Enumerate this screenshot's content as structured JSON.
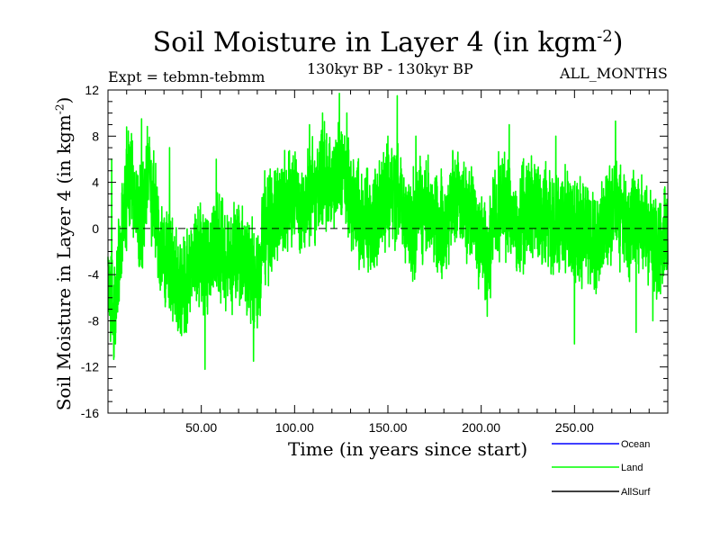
{
  "chart_data": {
    "type": "line",
    "title": "Soil Moisture in Layer 4 (in kgm",
    "title_sup": "-2",
    "title_close": ")",
    "expt_label": "Expt = tebmn-tebmm",
    "period_label": "130kyr BP - 130kyr BP",
    "months_label": "ALL_MONTHS",
    "xlabel": "Time (in years since start)",
    "ylabel": "Soil Moisture in Layer 4 (in kgm",
    "ylabel_sup": "-2",
    "ylabel_close": ")",
    "xlim": [
      0,
      300
    ],
    "ylim": [
      -16,
      12
    ],
    "x_ticks": [
      50,
      100,
      150,
      200,
      250
    ],
    "x_tick_labels": [
      "50.00",
      "100.00",
      "150.00",
      "200.00",
      "250.00"
    ],
    "y_ticks": [
      -16,
      -12,
      -8,
      -4,
      0,
      4,
      8,
      12
    ],
    "y_tick_labels": [
      "-16",
      "-12",
      "-8",
      "-4",
      "0",
      "4",
      "8",
      "12"
    ],
    "zero_line": 0,
    "colors": {
      "ocean": "#0000ff",
      "land": "#00ff00",
      "allsurf": "#000000"
    },
    "series": [
      {
        "name": "Land",
        "color": "#00ff00",
        "anchors": [
          [
            0,
            -4
          ],
          [
            3,
            -8
          ],
          [
            6,
            -3
          ],
          [
            9,
            2
          ],
          [
            12,
            5
          ],
          [
            15,
            2
          ],
          [
            18,
            0
          ],
          [
            21,
            5
          ],
          [
            24,
            3
          ],
          [
            28,
            -2
          ],
          [
            32,
            -3
          ],
          [
            36,
            -4
          ],
          [
            40,
            -6
          ],
          [
            44,
            -3
          ],
          [
            48,
            -2
          ],
          [
            52,
            -4
          ],
          [
            55,
            -3
          ],
          [
            58,
            -1
          ],
          [
            62,
            -2
          ],
          [
            66,
            -3
          ],
          [
            70,
            -2
          ],
          [
            74,
            -3
          ],
          [
            78,
            -4
          ],
          [
            80,
            -5
          ],
          [
            83,
            -1
          ],
          [
            86,
            0
          ],
          [
            90,
            1
          ],
          [
            95,
            2
          ],
          [
            100,
            3
          ],
          [
            105,
            2
          ],
          [
            110,
            3
          ],
          [
            115,
            4
          ],
          [
            120,
            5
          ],
          [
            125,
            5
          ],
          [
            128,
            4
          ],
          [
            132,
            2
          ],
          [
            136,
            1
          ],
          [
            140,
            0
          ],
          [
            145,
            1
          ],
          [
            150,
            3
          ],
          [
            155,
            3
          ],
          [
            158,
            1
          ],
          [
            162,
            0
          ],
          [
            166,
            1
          ],
          [
            170,
            2
          ],
          [
            175,
            1
          ],
          [
            180,
            0
          ],
          [
            185,
            2
          ],
          [
            190,
            2
          ],
          [
            195,
            1
          ],
          [
            200,
            -1
          ],
          [
            203,
            -3
          ],
          [
            206,
            0
          ],
          [
            210,
            2
          ],
          [
            215,
            1
          ],
          [
            220,
            0
          ],
          [
            225,
            2
          ],
          [
            230,
            2
          ],
          [
            235,
            1
          ],
          [
            240,
            0
          ],
          [
            245,
            1
          ],
          [
            250,
            -1
          ],
          [
            255,
            0
          ],
          [
            260,
            -2
          ],
          [
            265,
            0
          ],
          [
            270,
            2
          ],
          [
            275,
            1
          ],
          [
            280,
            0
          ],
          [
            285,
            1
          ],
          [
            290,
            -1
          ],
          [
            295,
            -2
          ],
          [
            300,
            -1
          ]
        ],
        "peaks": [
          [
            2,
            6
          ],
          [
            4,
            -10
          ],
          [
            10,
            8.8
          ],
          [
            18,
            9.5
          ],
          [
            33,
            7
          ],
          [
            42,
            -9
          ],
          [
            52,
            -12.2
          ],
          [
            58,
            6
          ],
          [
            78,
            -11.5
          ],
          [
            84,
            5
          ],
          [
            108,
            9
          ],
          [
            115,
            10
          ],
          [
            124,
            11.7
          ],
          [
            128,
            10
          ],
          [
            150,
            8
          ],
          [
            155,
            11.5
          ],
          [
            165,
            8
          ],
          [
            205,
            -6
          ],
          [
            215,
            9
          ],
          [
            240,
            8
          ],
          [
            250,
            -10
          ],
          [
            272,
            9.3
          ],
          [
            283,
            -9
          ],
          [
            292,
            -8
          ]
        ]
      },
      {
        "name": "Ocean",
        "color": "#0000ff",
        "anchors": [],
        "peaks": []
      },
      {
        "name": "AllSurf",
        "color": "#000000",
        "anchors": [],
        "peaks": []
      }
    ],
    "legend": [
      {
        "name": "Ocean",
        "color": "#0000ff"
      },
      {
        "name": "Land",
        "color": "#00ff00"
      },
      {
        "name": "AllSurf",
        "color": "#000000"
      }
    ]
  }
}
